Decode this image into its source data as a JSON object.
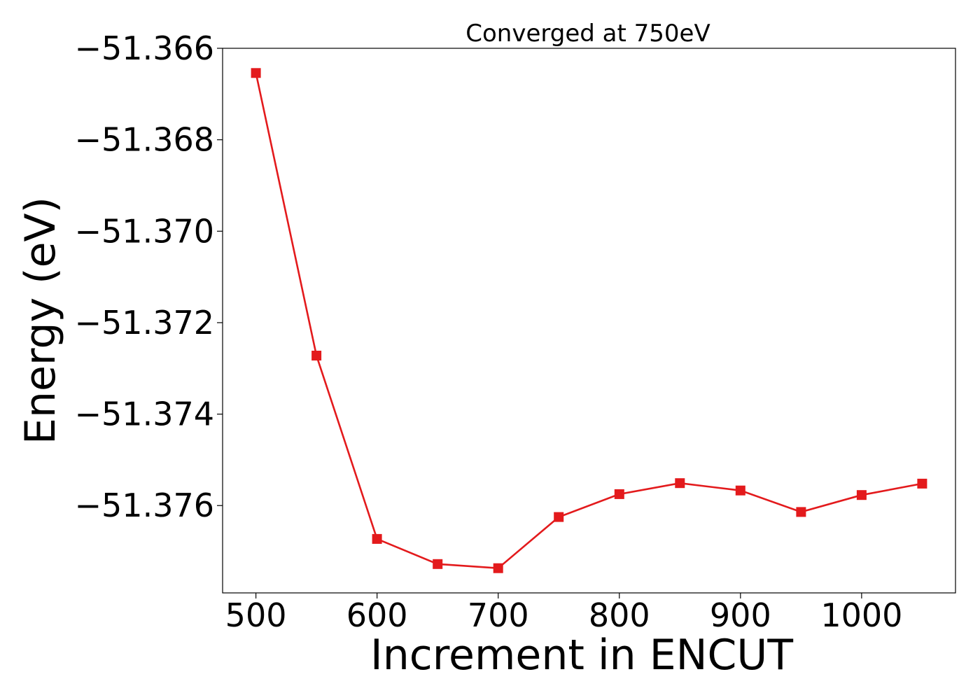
{
  "chart_data": {
    "type": "line",
    "title": "Converged at 750eV",
    "xlabel": "Increment in ENCUT",
    "ylabel": "Energy (eV)",
    "x": [
      500,
      550,
      600,
      650,
      700,
      750,
      800,
      850,
      900,
      950,
      1000,
      1050
    ],
    "series": [
      {
        "values": [
          -51.36654,
          -51.37272,
          -51.37673,
          -51.37728,
          -51.37737,
          -51.37625,
          -51.37575,
          -51.37551,
          -51.37567,
          -51.37614,
          -51.37577,
          -51.37552
        ],
        "color": "#e31a1c",
        "marker": "square"
      }
    ],
    "xlim": [
      472.5,
      1077.5
    ],
    "ylim": [
      -51.37791,
      -51.366
    ],
    "xticks": [
      500,
      600,
      700,
      800,
      900,
      1000
    ],
    "xtick_labels": [
      "500",
      "600",
      "700",
      "800",
      "900",
      "1000"
    ],
    "yticks": [
      -51.366,
      -51.368,
      -51.37,
      -51.372,
      -51.374,
      -51.376
    ],
    "ytick_labels": [
      "−51.366",
      "−51.368",
      "−51.370",
      "−51.372",
      "−51.374",
      "−51.376"
    ],
    "grid": false,
    "legend": "none"
  }
}
